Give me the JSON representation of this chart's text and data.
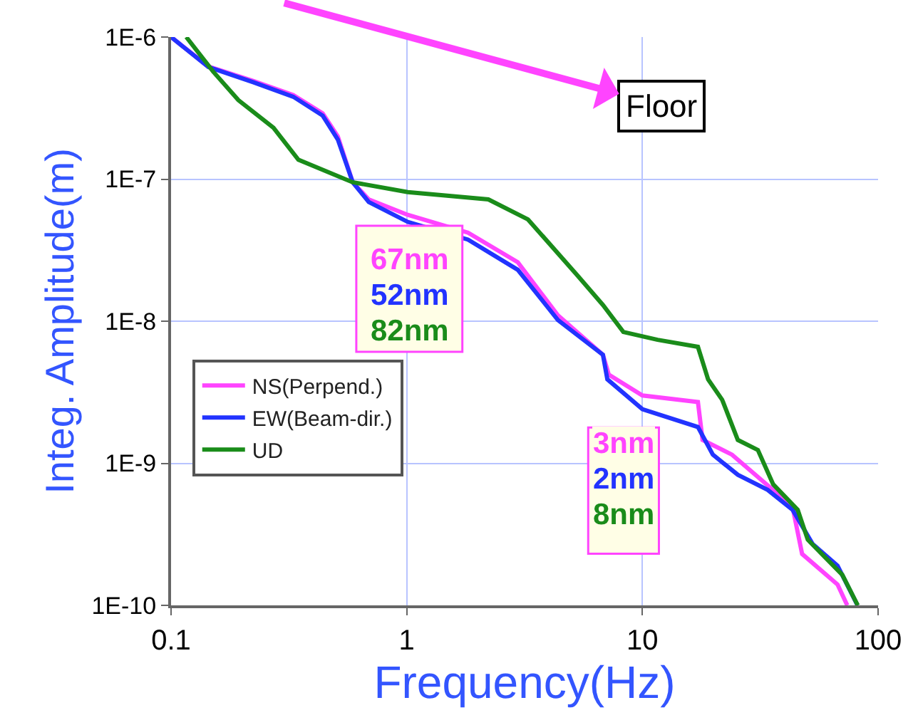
{
  "chart_data": {
    "type": "line",
    "xlabel": "Frequency(Hz)",
    "ylabel": "Integ. Amplitude(m)",
    "log": "xy",
    "grid": true,
    "legend": "left",
    "marker": "none",
    "line_style": "solid",
    "xlim": [
      0.1,
      100
    ],
    "xticks": [
      0.1,
      1,
      10,
      100
    ],
    "ylim": [
      1e-10,
      1e-06
    ],
    "yticks": [
      {
        "value": 1e-10,
        "label": "1E-10"
      },
      {
        "value": 1e-09,
        "label": "1E-9"
      },
      {
        "value": 1e-08,
        "label": "1E-8"
      },
      {
        "value": 1e-07,
        "label": "1E-7"
      },
      {
        "value": 1e-06,
        "label": "1E-6"
      }
    ],
    "series": [
      {
        "name": "NS(Perpend.)",
        "color": "#ff44ff",
        "x": [
          0.1,
          0.144,
          0.224,
          0.33,
          0.44,
          0.51,
          0.59,
          0.69,
          1.01,
          1.82,
          2.96,
          4.38,
          6.8,
          7.2,
          10.0,
          17.2,
          18,
          24,
          34,
          43.4,
          47.6,
          67.3,
          74
        ],
        "values": [
          1e-06,
          6.2e-07,
          4.9e-07,
          3.9e-07,
          2.9e-07,
          2e-07,
          9.5e-08,
          7.2e-08,
          5.6e-08,
          4.2e-08,
          2.6e-08,
          1.1e-08,
          5.8e-09,
          4.2e-09,
          3e-09,
          2.7e-09,
          1.46e-09,
          1.15e-09,
          7e-10,
          4.9e-10,
          2.3e-10,
          1.4e-10,
          1e-10
        ]
      },
      {
        "name": "EW(Beam-dir.)",
        "color": "#2233ff",
        "x": [
          0.1,
          0.144,
          0.224,
          0.33,
          0.44,
          0.51,
          0.59,
          0.69,
          1.01,
          1.82,
          2.96,
          4.38,
          6.8,
          7.1,
          10.0,
          17.2,
          19.9,
          25.4,
          34,
          43.4,
          52.8,
          67.3,
          81.8
        ],
        "values": [
          1e-06,
          6.15e-07,
          4.8e-07,
          3.8e-07,
          2.8e-07,
          1.9e-07,
          9.5e-08,
          6.9e-08,
          5e-08,
          3.75e-08,
          2.3e-08,
          1.02e-08,
          5.8e-09,
          3.9e-09,
          2.4e-09,
          1.8e-09,
          1.15e-09,
          8.3e-10,
          6.5e-10,
          4.7e-10,
          2.7e-10,
          1.9e-10,
          1e-10
        ]
      },
      {
        "name": "UD",
        "color": "#1a8c1a",
        "x": [
          0.116,
          0.151,
          0.193,
          0.272,
          0.347,
          0.59,
          1.01,
          2.22,
          3.27,
          5.3,
          6.8,
          8.3,
          11.6,
          17.2,
          19,
          21.8,
          25.4,
          30.9,
          35.9,
          45.6,
          50.3,
          70.5,
          82
        ],
        "values": [
          1e-06,
          5.7e-07,
          3.6e-07,
          2.3e-07,
          1.37e-07,
          9.5e-08,
          8.1e-08,
          7.2e-08,
          5.2e-08,
          2.1e-08,
          1.3e-08,
          8.4e-09,
          7.4e-09,
          6.6e-09,
          3.9e-09,
          2.8e-09,
          1.46e-09,
          1.24e-09,
          7.1e-10,
          4.7e-10,
          2.9e-10,
          1.64e-10,
          1e-10
        ]
      }
    ],
    "annotations": [
      "67nm",
      "52nm",
      "82nm",
      "3nm",
      "2nm",
      "8nm",
      "Floor"
    ]
  }
}
